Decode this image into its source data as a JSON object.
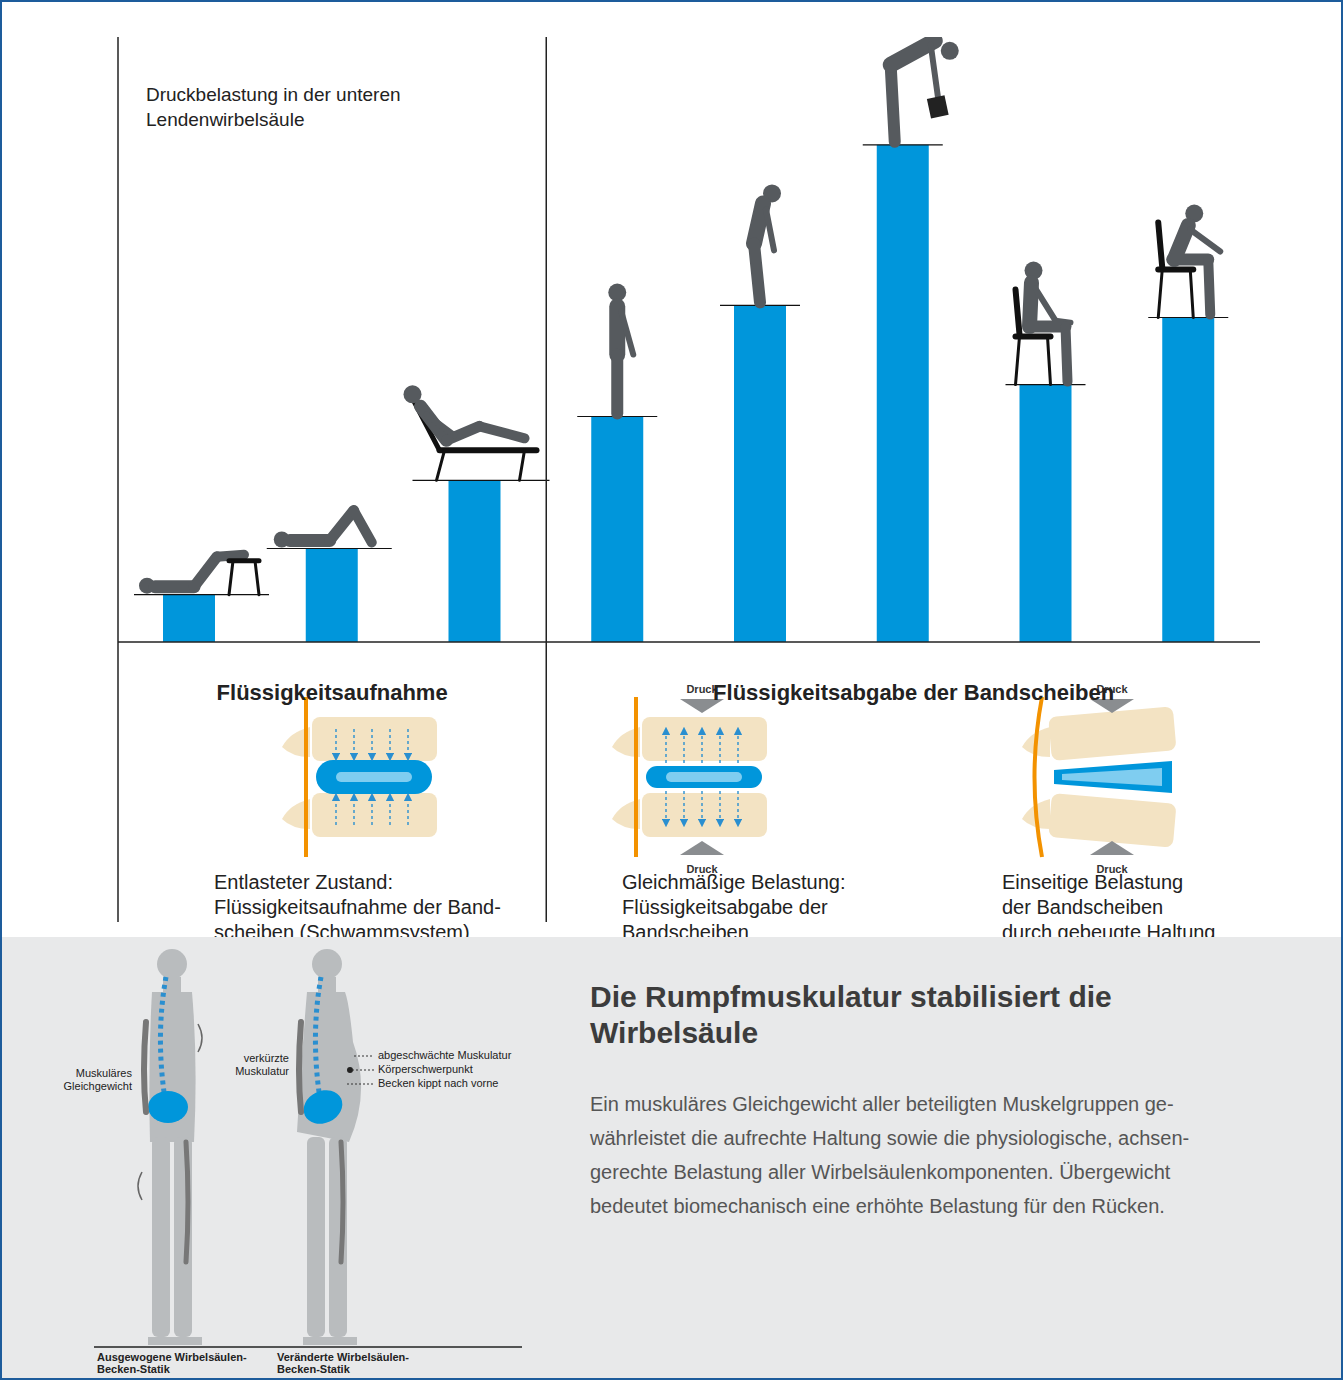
{
  "chart_data": {
    "type": "bar",
    "ylabel": "Druckbelastung in der unteren Lendenwirbelsäule",
    "categories": [
      null,
      null,
      null,
      null,
      null,
      null,
      null,
      null
    ],
    "values": [
      0.43,
      0.85,
      1.47,
      2.05,
      3.06,
      4.52,
      2.34,
      2.95
    ],
    "color": "#0096db",
    "ylim": [
      0,
      5.5
    ],
    "yticks": [
      0,
      1,
      2,
      3,
      4,
      5
    ],
    "grid": false,
    "tick_labels": false
  },
  "sections": [
    {
      "title": "Flüssigkeitsaufnahme",
      "panels": [
        {
          "caption": [
            "Entlasteter Zustand:",
            "Flüssigkeitsaufnahme der Band-",
            "scheiben (Schwammsystem)"
          ]
        }
      ]
    },
    {
      "title": "Flüssigkeitsabgabe der Bandscheiben",
      "panels": [
        {
          "pressure_label": "Druck",
          "caption": [
            "Gleichmäßige Belastung:",
            "Flüssigkeitsabgabe der",
            "Bandscheiben"
          ]
        },
        {
          "pressure_label": "Druck",
          "caption": [
            "Einseitige Belastung",
            "der Bandscheiben",
            "durch gebeugte Haltung"
          ]
        }
      ]
    }
  ],
  "posture": {
    "figures": [
      {
        "labels": [
          "Muskuläres Gleichgewicht"
        ],
        "caption": [
          "Ausgewogene Wirbelsäulen-",
          "Becken-Statik"
        ]
      },
      {
        "labels": [
          "verkürzte Muskulatur",
          "abgeschwächte Muskulatur",
          "Körperschwerpunkt",
          "Becken kippt nach vorne"
        ],
        "caption": [
          "Veränderte Wirbelsäulen-",
          "Becken-Statik"
        ]
      }
    ],
    "title": "Die Rumpfmuskulatur stabilisiert die Wirbelsäule",
    "text": [
      "Ein muskuläres Gleichgewicht aller beteiligten Muskelgruppen ge-",
      "währleistet die aufrechte Haltung sowie die physiologische, achsen-",
      "gerechte Belastung aller Wirbelsäulenkomponenten. Übergewicht",
      "bedeutet biomechanisch eine erhöhte Belastung für den Rücken."
    ]
  }
}
